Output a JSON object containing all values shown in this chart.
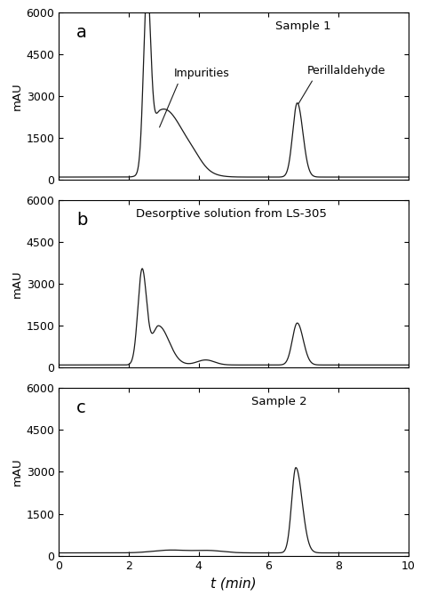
{
  "xlim": [
    0,
    10
  ],
  "ylim": [
    0,
    6000
  ],
  "yticks": [
    0,
    1500,
    3000,
    4500,
    6000
  ],
  "xticks": [
    0,
    2,
    4,
    6,
    8,
    10
  ],
  "ylabel": "mAU",
  "xlabel": "t (min)",
  "background_color": "#ffffff",
  "line_color": "#1a1a1a",
  "panel_a": {
    "label": "a",
    "annotation1": "Impurities",
    "annotation2": "Perillaldehyde",
    "title": "Sample 1"
  },
  "panel_b": {
    "label": "b",
    "title": "Desorptive solution from LS-305"
  },
  "panel_c": {
    "label": "c",
    "title": "Sample 2"
  },
  "figsize": [
    4.74,
    6.79
  ],
  "dpi": 100
}
